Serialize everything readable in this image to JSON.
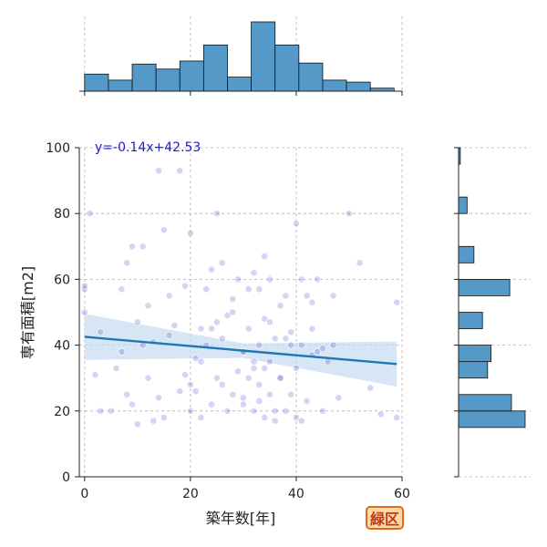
{
  "badge": "緑区",
  "chart_data": {
    "type": "scatter",
    "xlabel": "築年数[年]",
    "ylabel": "専有面積[m2]",
    "xlim": [
      -1,
      60
    ],
    "ylim": [
      0,
      100
    ],
    "x_ticks": [
      0,
      20,
      40,
      60
    ],
    "y_ticks": [
      0,
      20,
      40,
      60,
      80,
      100
    ],
    "grid": true,
    "equation": "y=-0.14x+42.53",
    "regression": {
      "slope": -0.14,
      "intercept": 42.53,
      "x_range": [
        0,
        59
      ]
    },
    "colors": {
      "points": "#3b3bc8",
      "line": "#1f77b4",
      "band": "#c6dbef",
      "hist": "#5499c7"
    },
    "points_x": [
      0,
      0,
      0,
      1,
      2,
      3,
      3,
      5,
      6,
      7,
      7,
      8,
      8,
      9,
      9,
      10,
      10,
      11,
      11,
      12,
      12,
      13,
      13,
      14,
      14,
      15,
      15,
      16,
      16,
      17,
      18,
      18,
      19,
      19,
      20,
      20,
      21,
      21,
      22,
      22,
      23,
      23,
      24,
      24,
      25,
      25,
      25,
      26,
      26,
      27,
      27,
      28,
      28,
      29,
      29,
      30,
      30,
      31,
      31,
      32,
      32,
      32,
      33,
      33,
      33,
      34,
      34,
      34,
      35,
      35,
      35,
      36,
      36,
      37,
      37,
      38,
      38,
      39,
      39,
      40,
      40,
      40,
      41,
      41,
      42,
      42,
      43,
      43,
      44,
      44,
      45,
      46,
      47,
      48,
      50,
      52,
      54,
      56,
      59,
      59,
      20,
      22,
      24,
      26,
      28,
      30,
      32,
      34,
      36,
      38,
      30,
      31,
      33,
      35,
      37,
      39,
      41,
      43,
      45,
      47
    ],
    "points_y": [
      57,
      50,
      58,
      80,
      31,
      20,
      44,
      20,
      33,
      57,
      38,
      65,
      25,
      70,
      22,
      47,
      16,
      70,
      40,
      52,
      30,
      41,
      17,
      93,
      24,
      75,
      18,
      43,
      55,
      46,
      93,
      26,
      31,
      58,
      74,
      20,
      36,
      26,
      45,
      18,
      57,
      40,
      63,
      22,
      80,
      47,
      30,
      65,
      42,
      20,
      49,
      54,
      25,
      60,
      32,
      38,
      24,
      45,
      30,
      62,
      20,
      35,
      57,
      28,
      40,
      67,
      33,
      18,
      47,
      25,
      60,
      42,
      17,
      52,
      30,
      55,
      20,
      40,
      25,
      77,
      33,
      18,
      60,
      40,
      23,
      55,
      45,
      37,
      38,
      60,
      20,
      35,
      55,
      24,
      80,
      65,
      27,
      19,
      53,
      18,
      28,
      35,
      45,
      28,
      50,
      22,
      33,
      48,
      20,
      42,
      38,
      57,
      23,
      35,
      30,
      44,
      17,
      53,
      39,
      40
    ],
    "hist_x": {
      "bins": [
        0,
        4.5,
        9,
        13.5,
        18,
        22.5,
        27,
        31.5,
        36,
        40.5,
        45,
        49.5,
        54,
        58.5
      ],
      "counts": [
        17,
        11,
        27,
        22,
        30,
        46,
        14,
        69,
        46,
        28,
        11,
        9,
        3
      ]
    },
    "hist_y": {
      "bins": [
        0,
        5,
        10,
        15,
        20,
        25,
        30,
        35,
        40,
        45,
        50,
        55,
        60,
        65,
        70,
        75,
        80,
        85,
        90,
        95,
        100
      ],
      "counts": [
        0,
        0,
        0,
        39,
        31,
        0,
        17,
        19,
        0,
        14,
        0,
        30,
        0,
        9,
        0,
        0,
        5,
        0,
        0,
        1
      ]
    }
  }
}
